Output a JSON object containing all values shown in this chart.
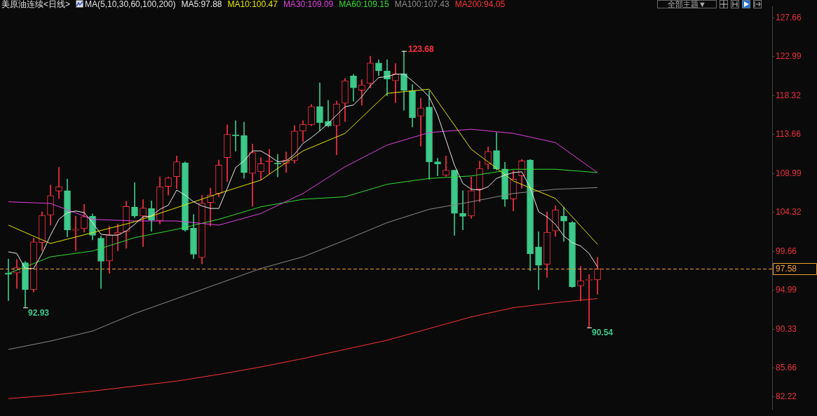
{
  "chart_data": {
    "type": "candlestick",
    "title": "美原油连续<日线>",
    "subtitle": "MA(5,10,30,60,100,200)",
    "categories": [
      null,
      null,
      null,
      null,
      null,
      null,
      null,
      null,
      null,
      null,
      null,
      null,
      null,
      null,
      null,
      null,
      null,
      null,
      null,
      null,
      null,
      null,
      null,
      null,
      null,
      null,
      null,
      null,
      null,
      null,
      null,
      null,
      null,
      null,
      null,
      null,
      null,
      null,
      null,
      null,
      null,
      null,
      null,
      null,
      null,
      null,
      null,
      null,
      null,
      null,
      null,
      null,
      null,
      null,
      null,
      null,
      null,
      null,
      null,
      null,
      null,
      null,
      null,
      null,
      null,
      null,
      null,
      null,
      null,
      null,
      null
    ],
    "ohlc": [
      [
        97.07,
        98.73,
        93.75,
        96.9
      ],
      [
        97.05,
        98.68,
        95.2,
        97.7
      ],
      [
        98.29,
        98.46,
        92.93,
        95.06
      ],
      [
        95.06,
        101.23,
        94.79,
        100.8
      ],
      [
        100.71,
        104.41,
        99.74,
        103.97
      ],
      [
        104.02,
        107.61,
        102.8,
        106.34
      ],
      [
        106.88,
        109.73,
        105.98,
        107.42
      ],
      [
        106.93,
        108.32,
        101.39,
        102.21
      ],
      [
        102.2,
        103.89,
        99.76,
        102.3
      ],
      [
        102.39,
        105.3,
        101.96,
        103.81
      ],
      [
        103.89,
        104.16,
        101.04,
        101.58
      ],
      [
        101.23,
        101.5,
        95.2,
        98.46
      ],
      [
        98.52,
        102.67,
        97.02,
        101.64
      ],
      [
        101.69,
        102.94,
        99.74,
        101.94
      ],
      [
        102.04,
        105.66,
        100.03,
        105.03
      ],
      [
        104.95,
        107.89,
        103.7,
        103.89
      ],
      [
        103.89,
        105.85,
        100.23,
        104.84
      ],
      [
        104.81,
        105.71,
        102.07,
        103.4
      ],
      [
        103.35,
        108.59,
        102.94,
        107.42
      ],
      [
        107.45,
        108.56,
        106.39,
        108.46
      ],
      [
        108.62,
        111.09,
        107.2,
        110.41
      ],
      [
        110.27,
        110.41,
        102.07,
        102.21
      ],
      [
        102.45,
        104.08,
        98.78,
        99.3
      ],
      [
        98.92,
        106.39,
        98.16,
        105.44
      ],
      [
        105.52,
        107.24,
        102.67,
        106.42
      ],
      [
        106.58,
        110.6,
        106.2,
        110.01
      ],
      [
        110.9,
        114.84,
        108.02,
        113.67
      ],
      [
        113.63,
        115.33,
        111.68,
        113.5
      ],
      [
        113.53,
        115.16,
        108.42,
        109.08
      ],
      [
        109.0,
        112.53,
        105.06,
        111.5
      ],
      [
        109.19,
        110.9,
        108.24,
        110.17
      ],
      [
        110.4,
        111.9,
        108.91,
        110.5
      ],
      [
        110.25,
        111.31,
        108.59,
        110.15
      ],
      [
        110.22,
        111.58,
        109.13,
        110.6
      ],
      [
        110.54,
        114.76,
        110.22,
        114.08
      ],
      [
        114.08,
        115.33,
        112.8,
        114.9
      ],
      [
        114.82,
        117.28,
        114.7,
        117.02
      ],
      [
        117.02,
        119.87,
        114.13,
        115.11
      ],
      [
        115.25,
        117.75,
        114.57,
        114.7
      ],
      [
        114.73,
        117.67,
        111.23,
        117.34
      ],
      [
        117.42,
        120.38,
        115.22,
        120.11
      ],
      [
        120.68,
        120.87,
        117.67,
        119.26
      ],
      [
        118.97,
        120.24,
        117.18,
        119.62
      ],
      [
        119.79,
        123.05,
        119.24,
        122.23
      ],
      [
        122.23,
        122.64,
        120.73,
        121.3
      ],
      [
        121.28,
        122.64,
        118.29,
        120.32
      ],
      [
        120.11,
        122.17,
        117.47,
        120.93
      ],
      [
        120.95,
        123.68,
        116.58,
        118.97
      ],
      [
        118.91,
        119.65,
        114.57,
        115.68
      ],
      [
        115.87,
        118.02,
        112.26,
        116.85
      ],
      [
        116.96,
        118.91,
        108.29,
        110.38
      ],
      [
        110.41,
        110.82,
        108.7,
        110.14
      ],
      [
        108.78,
        111.09,
        108.65,
        109.4
      ],
      [
        109.38,
        109.38,
        101.58,
        104.22
      ],
      [
        104.22,
        106.93,
        102.23,
        103.86
      ],
      [
        103.89,
        108.56,
        103.61,
        106.93
      ],
      [
        107.12,
        110.46,
        105.57,
        109.6
      ],
      [
        110.09,
        112.17,
        109.54,
        111.64
      ],
      [
        111.74,
        113.89,
        109.4,
        109.54
      ],
      [
        109.54,
        110.33,
        105.06,
        105.9
      ],
      [
        105.93,
        109.32,
        104.51,
        108.32
      ],
      [
        108.7,
        110.68,
        107.2,
        110.5
      ],
      [
        110.6,
        110.68,
        97.34,
        99.38
      ],
      [
        100.17,
        102.02,
        95.06,
        97.99
      ],
      [
        98.11,
        104.38,
        96.53,
        101.94
      ],
      [
        102.1,
        105.12,
        101.45,
        104.63
      ],
      [
        103.89,
        104.98,
        100.85,
        103.29
      ],
      [
        103.1,
        103.26,
        95.34,
        95.39
      ],
      [
        95.52,
        97.86,
        93.71,
        96.15
      ],
      [
        96.2,
        96.88,
        90.54,
        96.3
      ],
      [
        96.23,
        98.95,
        94.52,
        97.58
      ]
    ],
    "colors": [
      "#3cc98a",
      "#ff3040",
      "#3cc98a",
      "#ff3040",
      "#ff3040",
      "#ff3040",
      "#ff3040",
      "#3cc98a",
      "#ff3040",
      "#ff3040",
      "#3cc98a",
      "#3cc98a",
      "#ff3040",
      "#ff3040",
      "#ff3040",
      "#3cc98a",
      "#ff3040",
      "#3cc98a",
      "#ff3040",
      "#ff3040",
      "#ff3040",
      "#3cc98a",
      "#3cc98a",
      "#ff3040",
      "#ff3040",
      "#ff3040",
      "#ff3040",
      "#3cc98a",
      "#3cc98a",
      "#ff3040",
      "#ff3040",
      "#ff3040",
      "#3cc98a",
      "#ff3040",
      "#ff3040",
      "#ff3040",
      "#ff3040",
      "#3cc98a",
      "#3cc98a",
      "#ff3040",
      "#ff3040",
      "#3cc98a",
      "#ff3040",
      "#ff3040",
      "#3cc98a",
      "#3cc98a",
      "#ff3040",
      "#3cc98a",
      "#3cc98a",
      "#ff3040",
      "#3cc98a",
      "#3cc98a",
      "#ff3040",
      "#3cc98a",
      "#3cc98a",
      "#ff3040",
      "#ff3040",
      "#ff3040",
      "#3cc98a",
      "#3cc98a",
      "#ff3040",
      "#ff3040",
      "#3cc98a",
      "#3cc98a",
      "#ff3040",
      "#ff3040",
      "#3cc98a",
      "#3cc98a",
      "#ff3040",
      "#ff3040",
      "#ff3040"
    ],
    "series": [
      {
        "type": "line",
        "name": "MA5:97.88",
        "color": "#e8e8e8",
        "values": [
          99.6,
          99.4,
          97.6,
          97.6,
          99.4,
          101.6,
          103.5,
          104.3,
          104.5,
          104.3,
          103.1,
          101.7,
          101.6,
          101.6,
          102.1,
          102.9,
          103.8,
          103.9,
          104.7,
          105.2,
          107.0,
          106.4,
          105.6,
          105.1,
          104.8,
          104.8,
          107.2,
          109.7,
          110.5,
          111.7,
          111.7,
          111.1,
          110.4,
          110.5,
          111.3,
          112.6,
          113.3,
          114.1,
          115.0,
          116.0,
          117.0,
          117.2,
          118.2,
          119.5,
          120.5,
          120.6,
          120.9,
          120.9,
          120.1,
          119.2,
          118.2,
          116.0,
          113.0,
          110.0,
          107.8,
          107.1,
          107.0,
          107.4,
          108.4,
          108.8,
          109.1,
          109.2,
          107.3,
          104.4,
          103.8,
          102.9,
          101.5,
          100.7,
          100.3,
          99.4,
          97.8
        ]
      },
      {
        "type": "line",
        "name": "MA10:100.47",
        "color": "#e5e500",
        "values": [
          102.8,
          null,
          null,
          null,
          null,
          100.6,
          null,
          null,
          null,
          null,
          101.9,
          null,
          null,
          null,
          null,
          103.2,
          null,
          null,
          null,
          null,
          104.9,
          null,
          null,
          null,
          null,
          106.6,
          null,
          null,
          null,
          null,
          108.2,
          null,
          null,
          null,
          null,
          111.7,
          null,
          null,
          null,
          null,
          113.8,
          null,
          null,
          null,
          null,
          118.6,
          null,
          null,
          null,
          null,
          119.1,
          null,
          null,
          null,
          null,
          111.9,
          null,
          null,
          null,
          null,
          108.1,
          null,
          null,
          null,
          null,
          106.0,
          null,
          null,
          null,
          null,
          100.5
        ]
      },
      {
        "type": "line",
        "name": "MA30:109.09",
        "color": "#e040e0",
        "values": [
          105.6,
          null,
          null,
          null,
          null,
          105.4,
          null,
          null,
          null,
          null,
          103.5,
          null,
          null,
          null,
          null,
          103.3,
          null,
          null,
          null,
          null,
          103.3,
          null,
          null,
          null,
          null,
          102.8,
          null,
          null,
          null,
          null,
          104.2,
          null,
          null,
          null,
          null,
          106.6,
          null,
          null,
          null,
          null,
          109.8,
          null,
          null,
          null,
          null,
          112.4,
          null,
          null,
          null,
          null,
          113.9,
          null,
          null,
          null,
          null,
          114.3,
          null,
          null,
          null,
          null,
          113.8,
          null,
          null,
          null,
          null,
          112.7,
          null,
          null,
          null,
          null,
          109.1
        ]
      },
      {
        "type": "line",
        "name": "MA60:109.15",
        "color": "#33dd33",
        "values": [
          97.0,
          null,
          null,
          null,
          null,
          99.0,
          null,
          null,
          null,
          null,
          99.7,
          null,
          null,
          null,
          null,
          101.3,
          null,
          null,
          null,
          null,
          102.3,
          null,
          null,
          null,
          null,
          103.5,
          null,
          null,
          null,
          null,
          105.0,
          null,
          null,
          null,
          null,
          105.9,
          null,
          null,
          null,
          null,
          106.2,
          null,
          null,
          null,
          null,
          107.7,
          null,
          null,
          null,
          null,
          108.4,
          null,
          null,
          null,
          null,
          108.7,
          null,
          null,
          null,
          null,
          109.5,
          null,
          null,
          null,
          null,
          109.5,
          null,
          null,
          null,
          null,
          109.1
        ]
      },
      {
        "type": "line",
        "name": "MA100:107.43",
        "color": "#8a8a8a",
        "values": [
          87.9,
          null,
          null,
          null,
          null,
          88.9,
          null,
          null,
          null,
          null,
          90.1,
          null,
          null,
          null,
          null,
          92.2,
          null,
          null,
          null,
          null,
          94.0,
          null,
          null,
          null,
          null,
          95.8,
          null,
          null,
          null,
          null,
          97.6,
          null,
          null,
          null,
          null,
          99.0,
          null,
          null,
          null,
          null,
          101.0,
          null,
          null,
          null,
          null,
          103.1,
          null,
          null,
          null,
          null,
          104.7,
          null,
          null,
          null,
          null,
          105.6,
          null,
          null,
          null,
          null,
          106.6,
          null,
          null,
          null,
          null,
          107.1,
          null,
          null,
          null,
          null,
          107.3
        ]
      },
      {
        "type": "line",
        "name": "MA200:94.05",
        "color": "#ff3333",
        "values": [
          82.0,
          null,
          null,
          null,
          null,
          82.4,
          null,
          null,
          null,
          null,
          82.9,
          null,
          null,
          null,
          null,
          83.5,
          null,
          null,
          null,
          null,
          84.1,
          null,
          null,
          null,
          null,
          84.9,
          null,
          null,
          null,
          null,
          85.8,
          null,
          null,
          null,
          null,
          86.8,
          null,
          null,
          null,
          null,
          87.9,
          null,
          null,
          null,
          null,
          89.0,
          null,
          null,
          null,
          null,
          90.4,
          null,
          null,
          null,
          null,
          91.8,
          null,
          null,
          null,
          null,
          92.9,
          null,
          null,
          null,
          null,
          93.5,
          null,
          null,
          null,
          null,
          94.0
        ]
      }
    ],
    "ylim": [
      80.69,
      129.02
    ],
    "yticks": [
      127.66,
      122.99,
      118.32,
      113.66,
      108.99,
      104.32,
      99.66,
      94.99,
      90.33,
      85.66,
      82.22
    ],
    "tick_labels": "y",
    "grid": false,
    "legend": "top",
    "marker": "none",
    "ref_lines": [
      {
        "axis": "y",
        "value": 97.58,
        "label": "97.58",
        "color": "#f0a030",
        "line_style": "dashed"
      }
    ],
    "annotations": [
      "123.68",
      "92.93",
      "90.54",
      "全部主题▼"
    ]
  }
}
